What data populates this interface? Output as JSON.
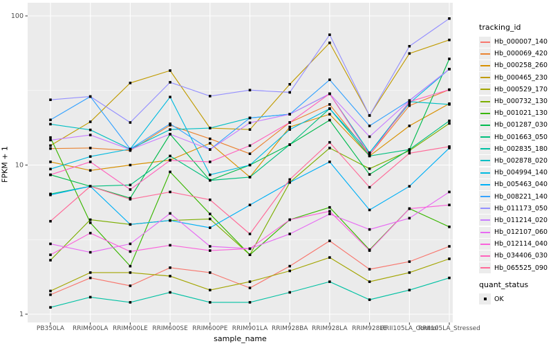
{
  "figure": {
    "x_axis_title": "sample_name",
    "y_axis_title": "FPKM + 1"
  },
  "legend": {
    "tracking_title": "tracking_id",
    "quant_title": "quant_status",
    "quant_entries": [
      {
        "label": "OK",
        "marker": "black-square"
      }
    ]
  },
  "chart_data": {
    "type": "line",
    "title": "",
    "xlabel": "sample_name",
    "ylabel": "FPKM + 1",
    "y_scale": "log10",
    "ylim": [
      1,
      100
    ],
    "y_ticks": [
      {
        "label": "1",
        "value": 1
      },
      {
        "label": "10",
        "value": 10
      },
      {
        "label": "100",
        "value": 100
      }
    ],
    "y_minor_ticks": [
      3.1623,
      31.6228
    ],
    "legend_position": "right",
    "grid": "white major and minor gridlines on gray panel",
    "panel_bg": "#EBEBEB",
    "grid_color": "#FFFFFF",
    "tick_label_color": "#4D4D4D",
    "tick_mark_color": "#333333",
    "marker": {
      "shape": "filled-square",
      "color": "#000000",
      "size": 3.6
    },
    "categories": [
      "PB350LA",
      "RRIM600LA",
      "RRIM600LE",
      "RRIM600SE",
      "RRIM600PE",
      "RRIM901LA",
      "RRIM928BA",
      "RRIM928LA",
      "RRIM928LE",
      "RRII105LA_Control",
      "RRII105LA_Stressed"
    ],
    "series": [
      {
        "name": "Hb_000007_140",
        "color": "#F8766D",
        "values": [
          1.35,
          1.75,
          1.55,
          2.05,
          1.9,
          1.5,
          2.1,
          3.1,
          2.0,
          2.25,
          2.85
        ]
      },
      {
        "name": "Hb_000069_420",
        "color": "#EA8331",
        "values": [
          12.9,
          13.0,
          12.5,
          18.5,
          15.0,
          11.9,
          19.3,
          25.5,
          11.7,
          25.0,
          32.0
        ]
      },
      {
        "name": "Hb_000258_260",
        "color": "#D89000",
        "values": [
          10.5,
          9.2,
          10.0,
          10.8,
          14.0,
          8.3,
          18.0,
          21.9,
          11.5,
          18.3,
          25.8
        ]
      },
      {
        "name": "Hb_000465_230",
        "color": "#C09B00",
        "values": [
          13.5,
          19.5,
          35.5,
          43.0,
          17.7,
          17.3,
          34.8,
          66.0,
          21.5,
          56.0,
          69.0
        ]
      },
      {
        "name": "Hb_000529_170",
        "color": "#A3A500",
        "values": [
          1.43,
          1.9,
          1.9,
          1.8,
          1.45,
          1.65,
          1.95,
          2.4,
          1.65,
          1.9,
          2.35
        ]
      },
      {
        "name": "Hb_000732_130",
        "color": "#7CAE00",
        "values": [
          2.3,
          4.3,
          4.0,
          4.25,
          4.35,
          2.5,
          7.65,
          13.0,
          9.45,
          12.5,
          19.0
        ]
      },
      {
        "name": "Hb_001021_130",
        "color": "#39B600",
        "values": [
          15.3,
          4.1,
          2.1,
          9.0,
          4.7,
          2.5,
          4.3,
          5.2,
          2.7,
          5.1,
          3.85
        ]
      },
      {
        "name": "Hb_001287_030",
        "color": "#00BB4E",
        "values": [
          8.6,
          7.2,
          6.0,
          16.1,
          7.9,
          10.0,
          13.7,
          20.0,
          8.65,
          12.7,
          51.5
        ]
      },
      {
        "name": "Hb_001663_050",
        "color": "#00BF7D",
        "values": [
          6.4,
          7.2,
          7.35,
          11.5,
          7.9,
          8.3,
          13.7,
          23.9,
          11.5,
          12.7,
          19.8
        ]
      },
      {
        "name": "Hb_002835_180",
        "color": "#00C1A3",
        "values": [
          1.11,
          1.3,
          1.2,
          1.4,
          1.2,
          1.2,
          1.4,
          1.65,
          1.25,
          1.45,
          1.75
        ]
      },
      {
        "name": "Hb_002878_020",
        "color": "#00BFC4",
        "values": [
          18.8,
          17.2,
          12.8,
          17.3,
          17.7,
          20.7,
          21.9,
          30.0,
          12.1,
          26.6,
          25.5
        ]
      },
      {
        "name": "Hb_004994_140",
        "color": "#00BAE0",
        "values": [
          9.4,
          11.4,
          12.8,
          28.6,
          8.6,
          10.0,
          17.3,
          23.9,
          12.1,
          26.0,
          44.0
        ]
      },
      {
        "name": "Hb_005463_040",
        "color": "#00B0F6",
        "values": [
          6.3,
          7.2,
          4.0,
          4.25,
          3.8,
          5.4,
          7.65,
          10.5,
          5.0,
          7.2,
          13.0
        ]
      },
      {
        "name": "Hb_008221_140",
        "color": "#35A2FF",
        "values": [
          20.1,
          28.8,
          12.8,
          18.9,
          12.7,
          20.7,
          21.9,
          37.3,
          18.3,
          27.1,
          44.0
        ]
      },
      {
        "name": "Hb_011173_050",
        "color": "#9590FF",
        "values": [
          27.4,
          28.8,
          19.3,
          35.9,
          29.0,
          31.8,
          30.7,
          74.8,
          21.5,
          62.6,
          96.0
        ]
      },
      {
        "name": "Hb_011214_020",
        "color": "#C77CFF",
        "values": [
          14.7,
          15.9,
          12.7,
          16.1,
          12.7,
          19.2,
          21.9,
          30.1,
          15.5,
          27.0,
          44.0
        ]
      },
      {
        "name": "Hb_012107_060",
        "color": "#E76BF3",
        "values": [
          2.96,
          2.6,
          2.96,
          4.74,
          2.85,
          2.75,
          3.45,
          4.7,
          3.7,
          4.4,
          6.6
        ]
      },
      {
        "name": "Hb_012114_040",
        "color": "#FA62DB",
        "values": [
          2.5,
          3.5,
          2.63,
          2.9,
          2.67,
          2.75,
          4.3,
          4.9,
          2.67,
          5.1,
          5.4
        ]
      },
      {
        "name": "Hb_034406_030",
        "color": "#FF62BC",
        "values": [
          8.6,
          10.5,
          6.85,
          10.75,
          10.5,
          13.5,
          19.3,
          30.1,
          11.7,
          26.6,
          32.0
        ]
      },
      {
        "name": "Hb_065525_090",
        "color": "#FF6A98",
        "values": [
          4.2,
          7.2,
          5.9,
          6.6,
          5.85,
          3.45,
          8.0,
          14.2,
          7.1,
          12.0,
          13.3
        ]
      }
    ]
  }
}
